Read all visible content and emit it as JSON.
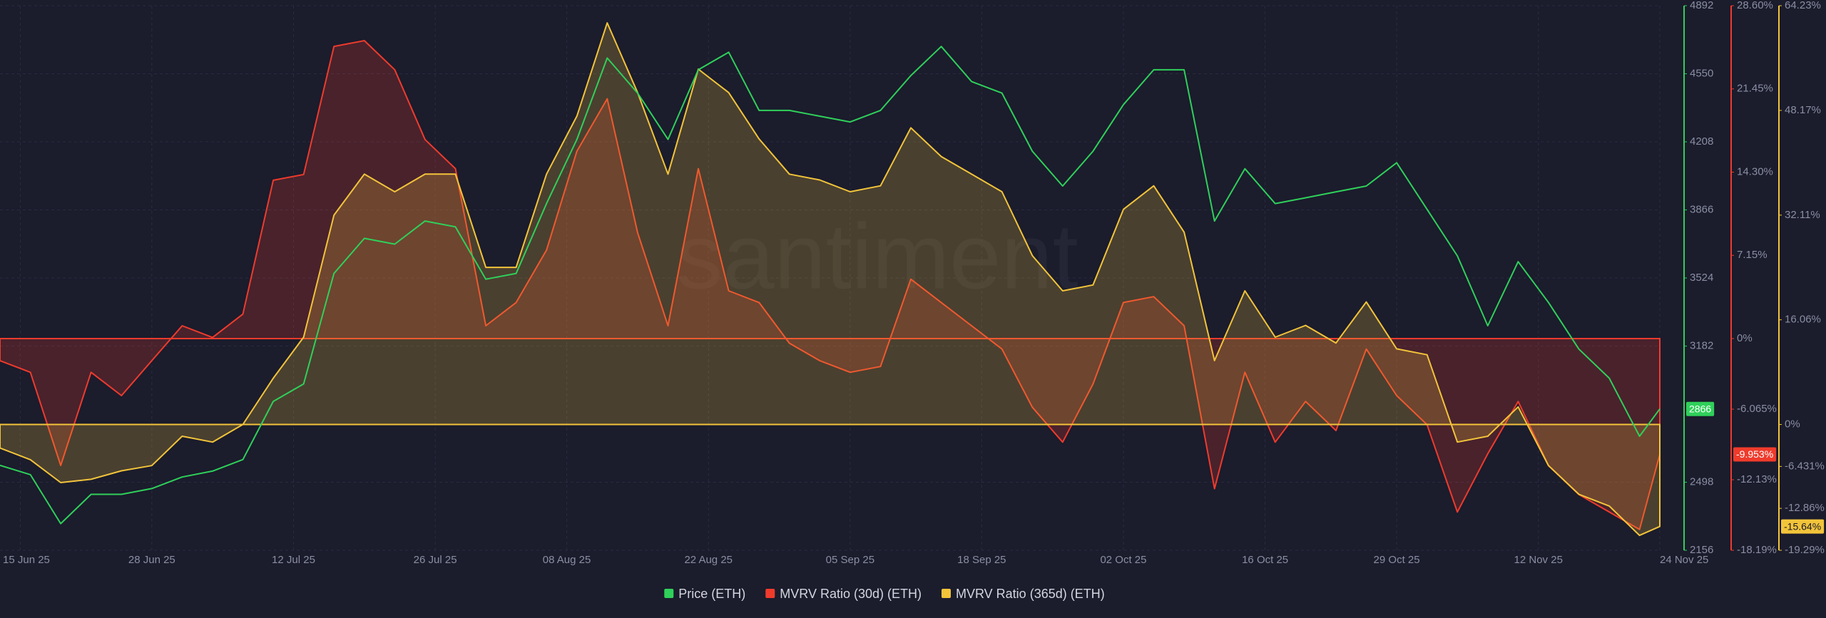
{
  "chart_data": {
    "type": "line",
    "watermark": "santiment",
    "grid": true,
    "background": "#1b1c2c",
    "x": [
      "2025-06-13",
      "2025-06-16",
      "2025-06-19",
      "2025-06-22",
      "2025-06-25",
      "2025-06-28",
      "2025-07-01",
      "2025-07-04",
      "2025-07-07",
      "2025-07-10",
      "2025-07-13",
      "2025-07-16",
      "2025-07-19",
      "2025-07-22",
      "2025-07-25",
      "2025-07-28",
      "2025-07-31",
      "2025-08-03",
      "2025-08-06",
      "2025-08-09",
      "2025-08-12",
      "2025-08-15",
      "2025-08-18",
      "2025-08-21",
      "2025-08-24",
      "2025-08-27",
      "2025-08-30",
      "2025-09-02",
      "2025-09-05",
      "2025-09-08",
      "2025-09-11",
      "2025-09-14",
      "2025-09-17",
      "2025-09-20",
      "2025-09-23",
      "2025-09-26",
      "2025-09-29",
      "2025-10-02",
      "2025-10-05",
      "2025-10-08",
      "2025-10-11",
      "2025-10-14",
      "2025-10-17",
      "2025-10-20",
      "2025-10-23",
      "2025-10-26",
      "2025-10-29",
      "2025-11-01",
      "2025-11-04",
      "2025-11-07",
      "2025-11-10",
      "2025-11-13",
      "2025-11-16",
      "2025-11-19",
      "2025-11-22",
      "2025-11-24"
    ],
    "xlim": [
      "2025-06-13",
      "2025-11-24"
    ],
    "xticks": [
      {
        "value": "2025-06-15",
        "label": "15 Jun 25"
      },
      {
        "value": "2025-06-28",
        "label": "28 Jun 25"
      },
      {
        "value": "2025-07-12",
        "label": "12 Jul 25"
      },
      {
        "value": "2025-07-26",
        "label": "26 Jul 25"
      },
      {
        "value": "2025-08-08",
        "label": "08 Aug 25"
      },
      {
        "value": "2025-08-22",
        "label": "22 Aug 25"
      },
      {
        "value": "2025-09-05",
        "label": "05 Sep 25"
      },
      {
        "value": "2025-09-18",
        "label": "18 Sep 25"
      },
      {
        "value": "2025-10-02",
        "label": "02 Oct 25"
      },
      {
        "value": "2025-10-16",
        "label": "16 Oct 25"
      },
      {
        "value": "2025-10-29",
        "label": "29 Oct 25"
      },
      {
        "value": "2025-11-12",
        "label": "12 Nov 25"
      },
      {
        "value": "2025-11-24",
        "label": "24 Nov 25"
      }
    ],
    "ylim": [
      2156,
      4892
    ],
    "yticks": [
      2156,
      2498,
      3182,
      3524,
      3866,
      4208,
      4550,
      4892
    ],
    "y2lim": [
      -18.19,
      28.6
    ],
    "y2ticks": [
      {
        "value": -18.19,
        "label": "-18.19%"
      },
      {
        "value": -12.13,
        "label": "-12.13%"
      },
      {
        "value": -6.065,
        "label": "-6.065%"
      },
      {
        "value": 0,
        "label": "0%"
      },
      {
        "value": 7.15,
        "label": "7.15%"
      },
      {
        "value": 14.3,
        "label": "14.30%"
      },
      {
        "value": 21.45,
        "label": "21.45%"
      },
      {
        "value": 28.6,
        "label": "28.60%"
      }
    ],
    "y3lim": [
      -19.29,
      64.23
    ],
    "y3ticks": [
      {
        "value": -19.29,
        "label": "-19.29%"
      },
      {
        "value": -12.86,
        "label": "-12.86%"
      },
      {
        "value": -6.431,
        "label": "-6.431%"
      },
      {
        "value": 0,
        "label": "0%"
      },
      {
        "value": 16.06,
        "label": "16.06%"
      },
      {
        "value": 32.11,
        "label": "32.11%"
      },
      {
        "value": 48.17,
        "label": "48.17%"
      },
      {
        "value": 64.23,
        "label": "64.23%"
      }
    ],
    "series": [
      {
        "name": "Price (ETH)",
        "type": "line",
        "axis": "y",
        "color": "#2fd05a",
        "values": [
          2583,
          2536,
          2290,
          2437,
          2437,
          2466,
          2524,
          2554,
          2612,
          2904,
          2992,
          3547,
          3723,
          3694,
          3810,
          3781,
          3518,
          3547,
          3898,
          4220,
          4629,
          4453,
          4220,
          4570,
          4658,
          4366,
          4366,
          4337,
          4308,
          4366,
          4541,
          4687,
          4511,
          4453,
          4161,
          3986,
          4161,
          4395,
          4570,
          4570,
          3810,
          4073,
          3898,
          3927,
          3957,
          3986,
          4103,
          3869,
          3635,
          3284,
          3606,
          3401,
          3167,
          3021,
          2729,
          2866
        ]
      },
      {
        "name": "MVRV Ratio (30d) (ETH)",
        "type": "area",
        "axis": "y2",
        "color": "#ef3b2c",
        "values": [
          -1.9,
          -2.9,
          -10.9,
          -2.9,
          -4.9,
          -1.9,
          1.1,
          0.1,
          2.1,
          13.6,
          14.1,
          25.1,
          25.6,
          23.1,
          17.1,
          14.6,
          1.1,
          3.1,
          7.6,
          16.1,
          20.6,
          9.1,
          1.1,
          14.6,
          4.1,
          3.1,
          -0.4,
          -1.9,
          -2.9,
          -2.4,
          5.1,
          3.1,
          1.1,
          -0.9,
          -5.9,
          -8.9,
          -3.9,
          3.1,
          3.6,
          1.1,
          -12.9,
          -2.9,
          -8.9,
          -5.4,
          -7.9,
          -0.9,
          -4.9,
          -7.4,
          -14.9,
          -9.9,
          -5.4,
          -10.9,
          -13.4,
          -14.9,
          -16.4,
          -9.953
        ],
        "value_labels": [
          null,
          null,
          null,
          null,
          null,
          null,
          null,
          null,
          null,
          null,
          null,
          null,
          null,
          null,
          null,
          null,
          null,
          null,
          null,
          null,
          null,
          null,
          null,
          null,
          null,
          null,
          null,
          null,
          null,
          null,
          null,
          null,
          null,
          null,
          null,
          null,
          null,
          null,
          null,
          null,
          null,
          null,
          null,
          null,
          null,
          null,
          null,
          null,
          null,
          null,
          null,
          null,
          null,
          null,
          null,
          "-9.953%"
        ]
      },
      {
        "name": "MVRV Ratio (365d) (ETH)",
        "type": "area",
        "axis": "y3",
        "color": "#f2c43a",
        "values": [
          -3.6,
          -5.4,
          -8.9,
          -8.4,
          -7.1,
          -6.3,
          -1.8,
          -2.7,
          0,
          7.1,
          13.4,
          32.1,
          38.4,
          35.7,
          38.4,
          38.4,
          24.1,
          24.1,
          38.4,
          47.3,
          61.6,
          50.9,
          38.4,
          54.5,
          50.9,
          43.8,
          38.4,
          37.5,
          35.7,
          36.6,
          45.5,
          41.1,
          38.4,
          35.7,
          25.9,
          20.5,
          21.4,
          33.0,
          36.6,
          29.5,
          9.8,
          20.5,
          13.4,
          15.2,
          12.5,
          18.8,
          11.6,
          10.7,
          -2.7,
          -1.8,
          2.7,
          -6.3,
          -10.7,
          -12.5,
          -17.0,
          -15.64
        ],
        "value_labels": [
          null,
          null,
          null,
          null,
          null,
          null,
          null,
          null,
          null,
          null,
          null,
          null,
          null,
          null,
          null,
          null,
          null,
          null,
          null,
          null,
          null,
          null,
          null,
          null,
          null,
          null,
          null,
          null,
          null,
          null,
          null,
          null,
          null,
          null,
          null,
          null,
          null,
          null,
          null,
          null,
          null,
          null,
          null,
          null,
          null,
          null,
          null,
          null,
          null,
          null,
          null,
          null,
          null,
          null,
          null,
          "-15.64%"
        ]
      }
    ]
  }
}
